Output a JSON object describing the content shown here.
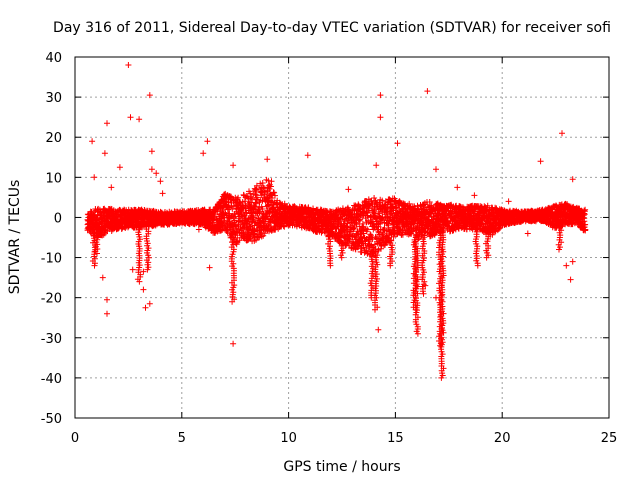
{
  "chart_data": {
    "type": "scatter",
    "title": "Day 316 of 2011, Sidereal Day-to-day VTEC variation (SDTVAR) for receiver sofi",
    "xlabel": "GPS time / hours",
    "ylabel": "SDTVAR / TECUs",
    "xlim": [
      0,
      25
    ],
    "ylim": [
      -50,
      40
    ],
    "xticks": [
      0,
      5,
      10,
      15,
      20,
      25
    ],
    "yticks": [
      -50,
      -40,
      -30,
      -20,
      -10,
      0,
      10,
      20,
      30,
      40
    ],
    "xtick_labels": [
      "0",
      "5",
      "10",
      "15",
      "20",
      "25"
    ],
    "ytick_labels": [
      "-50",
      "-40",
      "-30",
      "-20",
      "-10",
      "0",
      "10",
      "20",
      "30",
      "40"
    ],
    "grid": true,
    "marker": "+",
    "series": [
      {
        "name": "sofi",
        "color": "#ff0000",
        "band": [
          {
            "x": 0.6,
            "lo": -3.5,
            "hi": 1.0
          },
          {
            "x": 1.0,
            "lo": -5.0,
            "hi": 2.5
          },
          {
            "x": 2.0,
            "lo": -3.0,
            "hi": 2.0
          },
          {
            "x": 3.0,
            "lo": -2.5,
            "hi": 2.0
          },
          {
            "x": 4.0,
            "lo": -2.0,
            "hi": 1.5
          },
          {
            "x": 5.0,
            "lo": -1.5,
            "hi": 1.5
          },
          {
            "x": 6.0,
            "lo": -2.0,
            "hi": 2.0
          },
          {
            "x": 6.5,
            "lo": -4.0,
            "hi": 2.0
          },
          {
            "x": 7.0,
            "lo": -3.0,
            "hi": 6.0
          },
          {
            "x": 7.5,
            "lo": -7.0,
            "hi": 5.0
          },
          {
            "x": 8.0,
            "lo": -6.0,
            "hi": 6.0
          },
          {
            "x": 8.5,
            "lo": -6.0,
            "hi": 8.0
          },
          {
            "x": 9.0,
            "lo": -4.0,
            "hi": 10.0
          },
          {
            "x": 9.5,
            "lo": -3.0,
            "hi": 4.0
          },
          {
            "x": 10.0,
            "lo": -2.0,
            "hi": 3.0
          },
          {
            "x": 11.0,
            "lo": -3.0,
            "hi": 2.5
          },
          {
            "x": 12.0,
            "lo": -5.0,
            "hi": 1.5
          },
          {
            "x": 13.0,
            "lo": -8.0,
            "hi": 3.0
          },
          {
            "x": 13.5,
            "lo": -9.0,
            "hi": 4.0
          },
          {
            "x": 14.0,
            "lo": -10.0,
            "hi": 5.0
          },
          {
            "x": 14.5,
            "lo": -7.0,
            "hi": 4.5
          },
          {
            "x": 15.0,
            "lo": -5.0,
            "hi": 5.0
          },
          {
            "x": 15.5,
            "lo": -4.0,
            "hi": 4.0
          },
          {
            "x": 16.0,
            "lo": -6.0,
            "hi": 3.0
          },
          {
            "x": 16.5,
            "lo": -5.0,
            "hi": 4.0
          },
          {
            "x": 17.0,
            "lo": -4.0,
            "hi": 3.5
          },
          {
            "x": 18.0,
            "lo": -3.0,
            "hi": 3.0
          },
          {
            "x": 19.0,
            "lo": -3.0,
            "hi": 3.0
          },
          {
            "x": 19.5,
            "lo": -5.0,
            "hi": 3.0
          },
          {
            "x": 20.0,
            "lo": -2.0,
            "hi": 2.0
          },
          {
            "x": 21.0,
            "lo": -1.0,
            "hi": 1.5
          },
          {
            "x": 22.0,
            "lo": -1.0,
            "hi": 2.0
          },
          {
            "x": 22.5,
            "lo": -3.0,
            "hi": 3.0
          },
          {
            "x": 23.0,
            "lo": -2.0,
            "hi": 3.5
          },
          {
            "x": 23.5,
            "lo": -1.5,
            "hi": 2.5
          },
          {
            "x": 23.9,
            "lo": -4.0,
            "hi": 2.0
          }
        ],
        "dips": [
          {
            "x": 0.9,
            "y": -12
          },
          {
            "x": 1.0,
            "y": -9
          },
          {
            "x": 3.0,
            "y": -16
          },
          {
            "x": 3.4,
            "y": -13
          },
          {
            "x": 7.4,
            "y": -21
          },
          {
            "x": 11.9,
            "y": -12
          },
          {
            "x": 12.5,
            "y": -10
          },
          {
            "x": 13.9,
            "y": -20
          },
          {
            "x": 14.1,
            "y": -23
          },
          {
            "x": 14.8,
            "y": -12
          },
          {
            "x": 15.9,
            "y": -23
          },
          {
            "x": 16.0,
            "y": -29
          },
          {
            "x": 16.3,
            "y": -19
          },
          {
            "x": 17.1,
            "y": -32
          },
          {
            "x": 17.2,
            "y": -40
          },
          {
            "x": 18.8,
            "y": -12
          },
          {
            "x": 19.3,
            "y": -10
          },
          {
            "x": 22.7,
            "y": -8
          }
        ],
        "outliers": [
          {
            "x": 2.5,
            "y": 38
          },
          {
            "x": 3.5,
            "y": 30.5
          },
          {
            "x": 14.3,
            "y": 30.5
          },
          {
            "x": 16.5,
            "y": 31.5
          },
          {
            "x": 1.5,
            "y": 23.5
          },
          {
            "x": 2.6,
            "y": 25
          },
          {
            "x": 3.0,
            "y": 24.5
          },
          {
            "x": 14.3,
            "y": 25
          },
          {
            "x": 0.8,
            "y": 19
          },
          {
            "x": 6.2,
            "y": 19
          },
          {
            "x": 15.1,
            "y": 18.5
          },
          {
            "x": 22.8,
            "y": 21
          },
          {
            "x": 6.0,
            "y": 16
          },
          {
            "x": 3.6,
            "y": 16.5
          },
          {
            "x": 9.0,
            "y": 14.5
          },
          {
            "x": 10.9,
            "y": 15.5
          },
          {
            "x": 21.8,
            "y": 14
          },
          {
            "x": 1.4,
            "y": 16
          },
          {
            "x": 2.1,
            "y": 12.5
          },
          {
            "x": 3.6,
            "y": 12
          },
          {
            "x": 3.8,
            "y": 11
          },
          {
            "x": 14.1,
            "y": 13
          },
          {
            "x": 16.9,
            "y": 12
          },
          {
            "x": 7.4,
            "y": 13
          },
          {
            "x": 0.9,
            "y": 10
          },
          {
            "x": 1.7,
            "y": 7.5
          },
          {
            "x": 4.0,
            "y": 9
          },
          {
            "x": 23.3,
            "y": 9.5
          },
          {
            "x": 1.3,
            "y": -15
          },
          {
            "x": 1.5,
            "y": -20.5
          },
          {
            "x": 1.5,
            "y": -24
          },
          {
            "x": 3.2,
            "y": -18
          },
          {
            "x": 3.3,
            "y": -22.5
          },
          {
            "x": 3.5,
            "y": -21.5
          },
          {
            "x": 2.7,
            "y": -13
          },
          {
            "x": 3.2,
            "y": -13.5
          },
          {
            "x": 6.3,
            "y": -12.5
          },
          {
            "x": 7.4,
            "y": -31.5
          },
          {
            "x": 14.2,
            "y": -28
          },
          {
            "x": 16.4,
            "y": -17
          },
          {
            "x": 16.9,
            "y": -20
          },
          {
            "x": 23.2,
            "y": -15.5
          },
          {
            "x": 23.0,
            "y": -12
          },
          {
            "x": 23.3,
            "y": -11
          },
          {
            "x": 21.2,
            "y": -4
          },
          {
            "x": 22.2,
            "y": -1
          },
          {
            "x": 20.3,
            "y": 4
          },
          {
            "x": 12.8,
            "y": 7
          },
          {
            "x": 5.8,
            "y": -3
          },
          {
            "x": 4.1,
            "y": 6
          },
          {
            "x": 17.9,
            "y": 7.5
          },
          {
            "x": 18.7,
            "y": 5.5
          },
          {
            "x": 8.2,
            "y": 6
          },
          {
            "x": 9.2,
            "y": 9
          }
        ]
      }
    ]
  }
}
